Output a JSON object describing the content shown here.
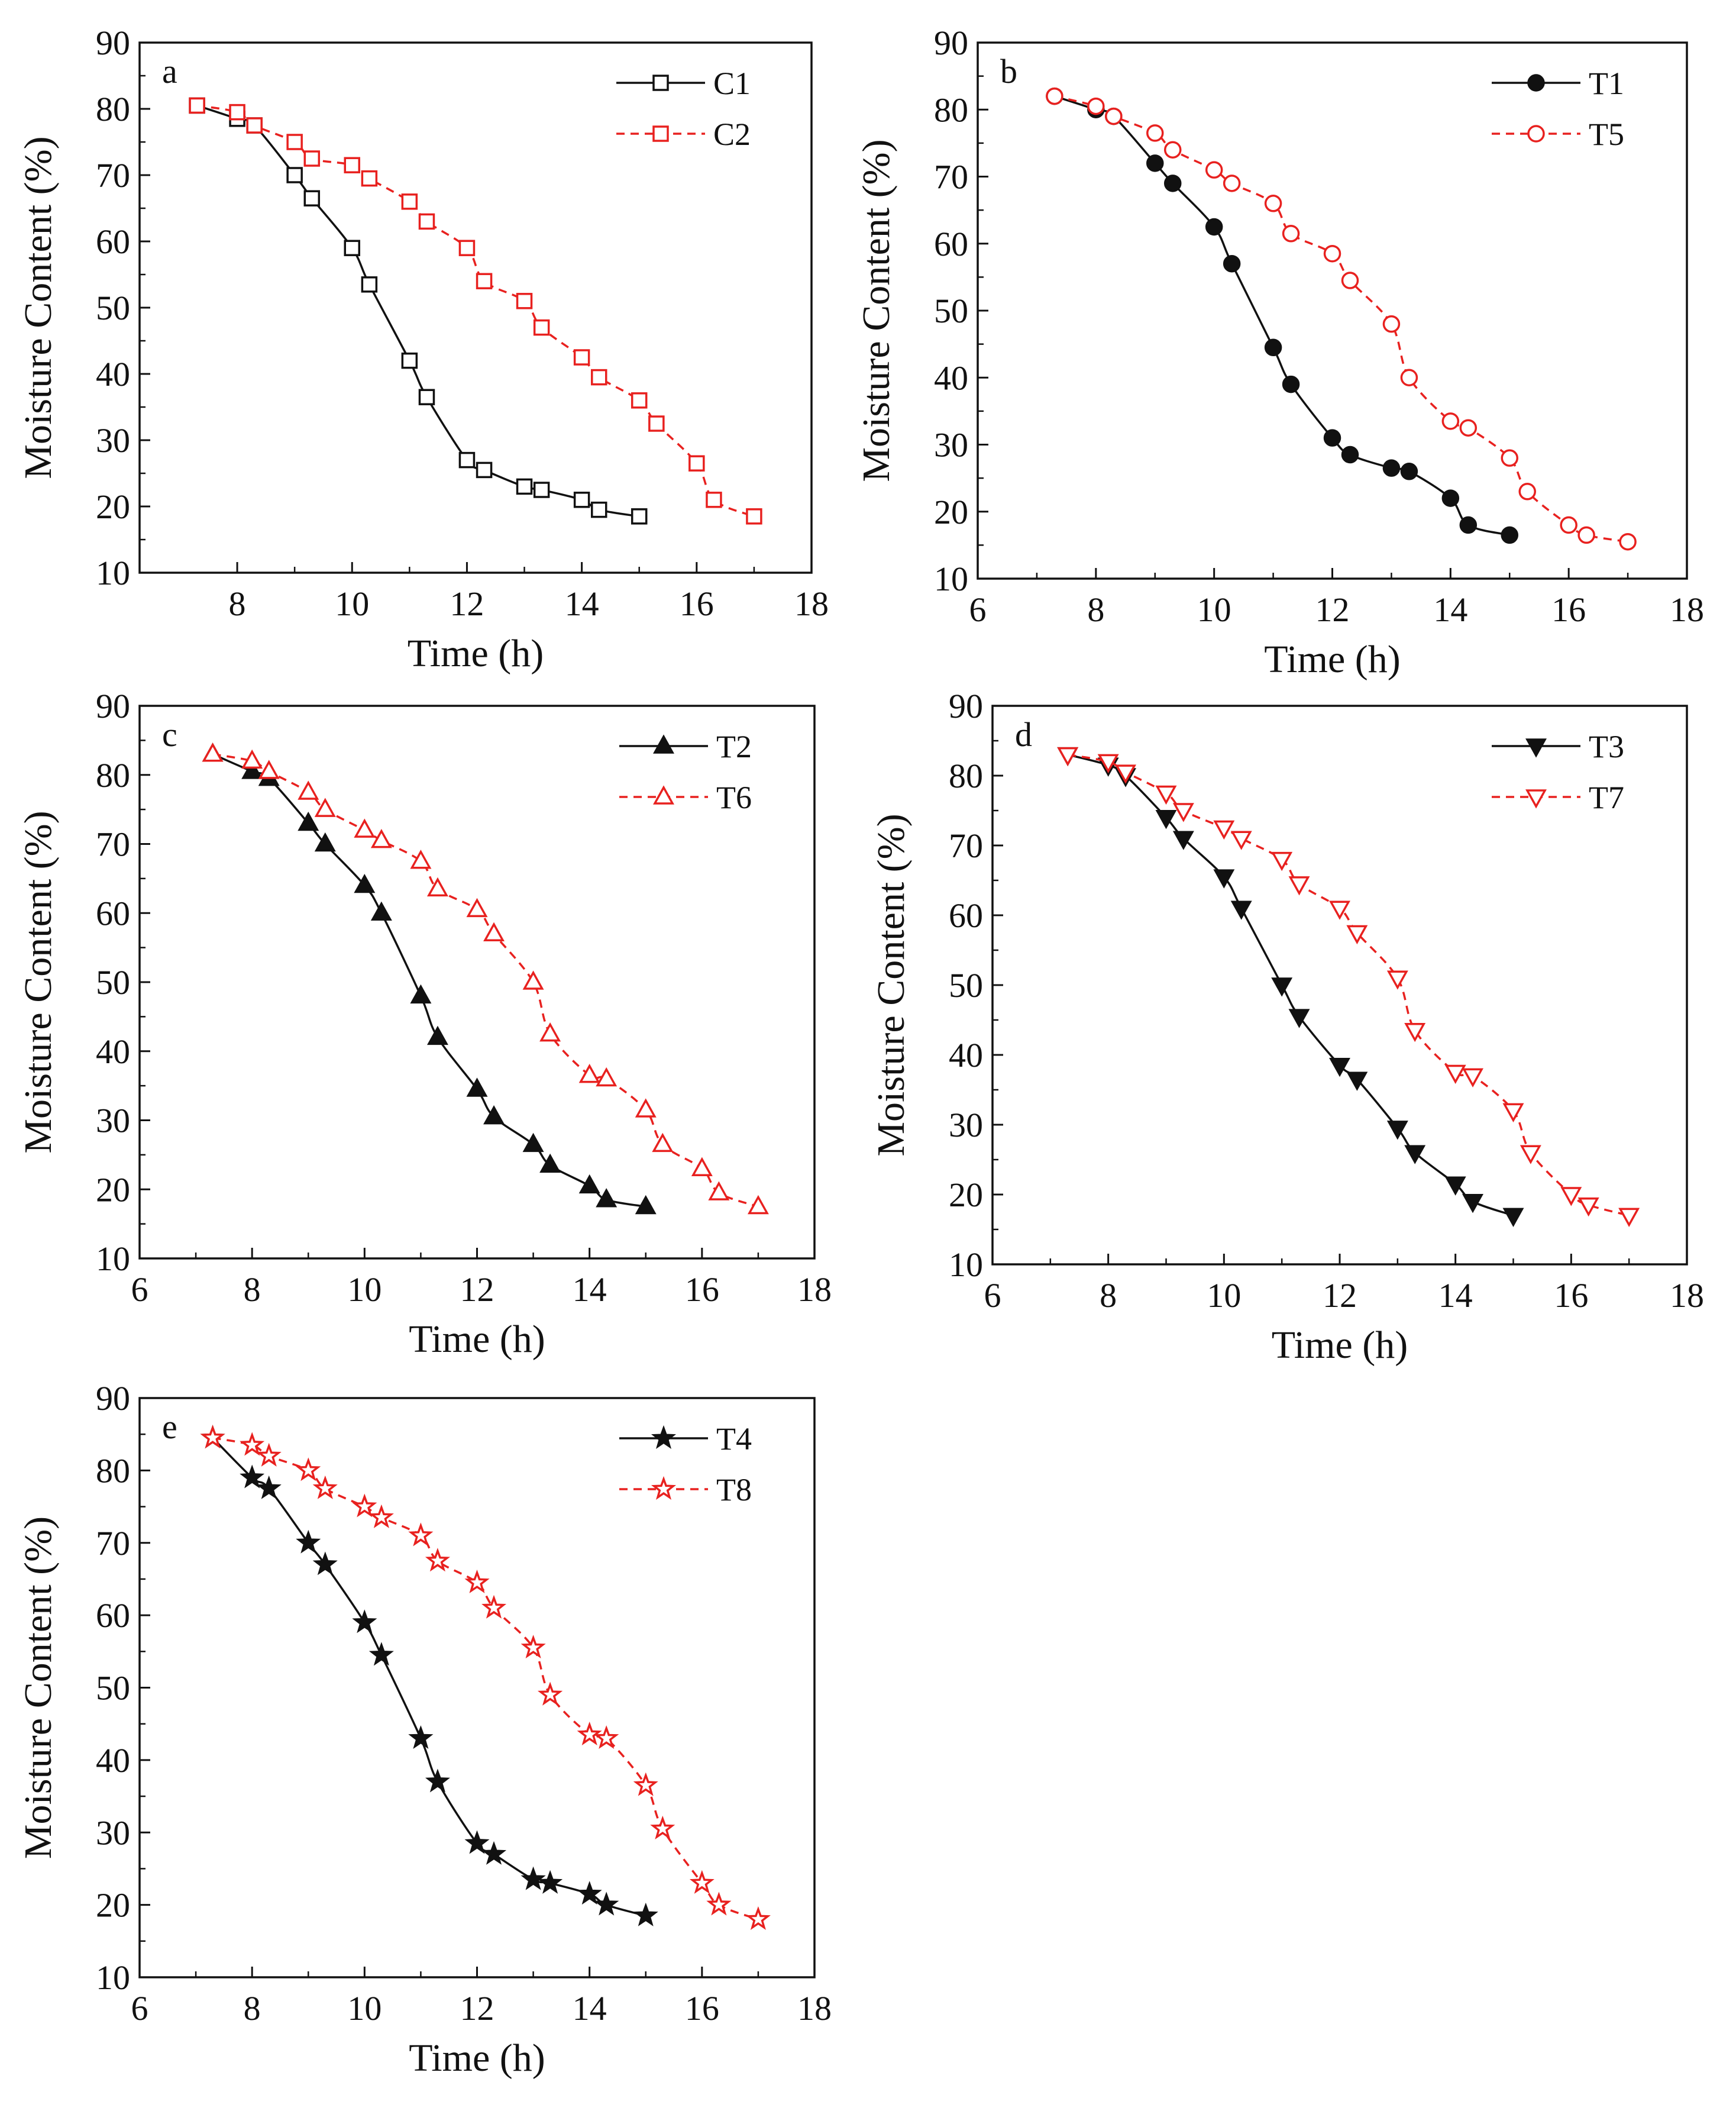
{
  "figure": {
    "colors": {
      "black": "#111111",
      "red": "#e8211f"
    }
  },
  "chart_data": [
    {
      "type": "line",
      "panel": "a",
      "xlabel": "Time (h)",
      "ylabel": "Moisture Content (%)",
      "xlim": [
        6.3,
        18
      ],
      "ylim": [
        10,
        90
      ],
      "xticks": [
        8,
        10,
        12,
        14,
        16,
        18
      ],
      "yticks": [
        10,
        20,
        30,
        40,
        50,
        60,
        70,
        80,
        90
      ],
      "legend_position": "top-right",
      "series": [
        {
          "name": "C1",
          "color": "#111111",
          "marker": "square",
          "filled": false,
          "dashed": false,
          "x": [
            7.3,
            8.0,
            8.3,
            9.0,
            9.3,
            10.0,
            10.3,
            11.0,
            11.3,
            12.0,
            12.3,
            13.0,
            13.3,
            14.0,
            14.3,
            15.0
          ],
          "values": [
            80.5,
            78.5,
            77.5,
            70,
            66.5,
            59,
            53.5,
            42,
            36.5,
            27,
            25.5,
            23,
            22.5,
            21,
            19.5,
            18.5
          ]
        },
        {
          "name": "C2",
          "color": "#e8211f",
          "marker": "square",
          "filled": false,
          "dashed": true,
          "x": [
            7.3,
            8.0,
            8.3,
            9.0,
            9.3,
            10.0,
            10.3,
            11.0,
            11.3,
            12.0,
            12.3,
            13.0,
            13.3,
            14.0,
            14.3,
            15.0,
            15.3,
            16.0,
            16.3,
            17.0
          ],
          "values": [
            80.5,
            79.5,
            77.5,
            75,
            72.5,
            71.5,
            69.5,
            66,
            63,
            59,
            54,
            51,
            47,
            42.5,
            39.5,
            36,
            32.5,
            26.5,
            21,
            18.5
          ]
        }
      ]
    },
    {
      "type": "line",
      "panel": "b",
      "xlabel": "Time (h)",
      "ylabel": "Moisture Content (%)",
      "xlim": [
        6,
        18
      ],
      "ylim": [
        10,
        90
      ],
      "xticks": [
        6,
        8,
        10,
        12,
        14,
        16,
        18
      ],
      "yticks": [
        10,
        20,
        30,
        40,
        50,
        60,
        70,
        80,
        90
      ],
      "legend_position": "top-right",
      "series": [
        {
          "name": "T1",
          "color": "#111111",
          "marker": "circle",
          "filled": true,
          "dashed": false,
          "x": [
            7.3,
            8.0,
            8.3,
            9.0,
            9.3,
            10.0,
            10.3,
            11.0,
            11.3,
            12.0,
            12.3,
            13.0,
            13.3,
            14.0,
            14.3,
            15.0
          ],
          "values": [
            82,
            80,
            79,
            72,
            69,
            62.5,
            57,
            44.5,
            39,
            31,
            28.5,
            26.5,
            26,
            22,
            18,
            16.5
          ]
        },
        {
          "name": "T5",
          "color": "#e8211f",
          "marker": "circle",
          "filled": false,
          "dashed": true,
          "x": [
            7.3,
            8.0,
            8.3,
            9.0,
            9.3,
            10.0,
            10.3,
            11.0,
            11.3,
            12.0,
            12.3,
            13.0,
            13.3,
            14.0,
            14.3,
            15.0,
            15.3,
            16.0,
            16.3,
            17.0
          ],
          "values": [
            82,
            80.5,
            79,
            76.5,
            74,
            71,
            69,
            66,
            61.5,
            58.5,
            54.5,
            48,
            40,
            33.5,
            32.5,
            28,
            23,
            18,
            16.5,
            15.5
          ]
        }
      ]
    },
    {
      "type": "line",
      "panel": "c",
      "xlabel": "Time (h)",
      "ylabel": "Moisture Content (%)",
      "xlim": [
        6,
        18
      ],
      "ylim": [
        10,
        90
      ],
      "xticks": [
        6,
        8,
        10,
        12,
        14,
        16,
        18
      ],
      "yticks": [
        10,
        20,
        30,
        40,
        50,
        60,
        70,
        80,
        90
      ],
      "legend_position": "top-right",
      "series": [
        {
          "name": "T2",
          "color": "#111111",
          "marker": "triangle-up",
          "filled": true,
          "dashed": false,
          "x": [
            7.3,
            8.0,
            8.3,
            9.0,
            9.3,
            10.0,
            10.3,
            11.0,
            11.3,
            12.0,
            12.3,
            13.0,
            13.3,
            14.0,
            14.3,
            15.0
          ],
          "values": [
            83,
            80.5,
            79.5,
            73,
            70,
            64,
            60,
            48,
            42,
            34.5,
            30.5,
            26.5,
            23.5,
            20.5,
            18.5,
            17.5
          ]
        },
        {
          "name": "T6",
          "color": "#e8211f",
          "marker": "triangle-up",
          "filled": false,
          "dashed": true,
          "x": [
            7.3,
            8.0,
            8.3,
            9.0,
            9.3,
            10.0,
            10.3,
            11.0,
            11.3,
            12.0,
            12.3,
            13.0,
            13.3,
            14.0,
            14.3,
            15.0,
            15.3,
            16.0,
            16.3,
            17.0
          ],
          "values": [
            83,
            82,
            80.5,
            77.5,
            75,
            72,
            70.5,
            67.5,
            63.5,
            60.5,
            57,
            50,
            42.5,
            36.5,
            36,
            31.5,
            26.5,
            23,
            19.5,
            17.5
          ]
        }
      ]
    },
    {
      "type": "line",
      "panel": "d",
      "xlabel": "Time (h)",
      "ylabel": "Moisture Content (%)",
      "xlim": [
        6,
        18
      ],
      "ylim": [
        10,
        90
      ],
      "xticks": [
        6,
        8,
        10,
        12,
        14,
        16,
        18
      ],
      "yticks": [
        10,
        20,
        30,
        40,
        50,
        60,
        70,
        80,
        90
      ],
      "legend_position": "top-right",
      "series": [
        {
          "name": "T3",
          "color": "#111111",
          "marker": "triangle-down",
          "filled": true,
          "dashed": false,
          "x": [
            7.3,
            8.0,
            8.3,
            9.0,
            9.3,
            10.0,
            10.3,
            11.0,
            11.3,
            12.0,
            12.3,
            13.0,
            13.3,
            14.0,
            14.3,
            15.0
          ],
          "values": [
            83,
            81.5,
            80,
            74,
            71,
            65.5,
            61,
            50,
            45.5,
            38.5,
            36.5,
            29.5,
            26,
            21.5,
            19,
            17
          ]
        },
        {
          "name": "T7",
          "color": "#e8211f",
          "marker": "triangle-down",
          "filled": false,
          "dashed": true,
          "x": [
            7.3,
            8.0,
            8.3,
            9.0,
            9.3,
            10.0,
            10.3,
            11.0,
            11.3,
            12.0,
            12.3,
            13.0,
            13.3,
            14.0,
            14.3,
            15.0,
            15.3,
            16.0,
            16.3,
            17.0
          ],
          "values": [
            83,
            82,
            80.5,
            77.5,
            75,
            72.5,
            71,
            68,
            64.5,
            61,
            57.5,
            51,
            43.5,
            37.5,
            37,
            32,
            26,
            20,
            18.5,
            17
          ]
        }
      ]
    },
    {
      "type": "line",
      "panel": "e",
      "xlabel": "Time (h)",
      "ylabel": "Moisture Content (%)",
      "xlim": [
        6,
        18
      ],
      "ylim": [
        10,
        90
      ],
      "xticks": [
        6,
        8,
        10,
        12,
        14,
        16,
        18
      ],
      "yticks": [
        10,
        20,
        30,
        40,
        50,
        60,
        70,
        80,
        90
      ],
      "legend_position": "top-right",
      "series": [
        {
          "name": "T4",
          "color": "#111111",
          "marker": "star",
          "filled": true,
          "dashed": false,
          "x": [
            7.3,
            8.0,
            8.3,
            9.0,
            9.3,
            10.0,
            10.3,
            11.0,
            11.3,
            12.0,
            12.3,
            13.0,
            13.3,
            14.0,
            14.3,
            15.0
          ],
          "values": [
            84.5,
            79,
            77.5,
            70,
            67,
            59,
            54.5,
            43,
            37,
            28.5,
            27,
            23.5,
            23,
            21.5,
            20,
            18.5
          ]
        },
        {
          "name": "T8",
          "color": "#e8211f",
          "marker": "star",
          "filled": false,
          "dashed": true,
          "x": [
            7.3,
            8.0,
            8.3,
            9.0,
            9.3,
            10.0,
            10.3,
            11.0,
            11.3,
            12.0,
            12.3,
            13.0,
            13.3,
            14.0,
            14.3,
            15.0,
            15.3,
            16.0,
            16.3,
            17.0
          ],
          "values": [
            84.5,
            83.5,
            82,
            80,
            77.5,
            75,
            73.5,
            71,
            67.5,
            64.5,
            61,
            55.5,
            49,
            43.5,
            43,
            36.5,
            30.5,
            23,
            20,
            18
          ]
        }
      ]
    }
  ]
}
